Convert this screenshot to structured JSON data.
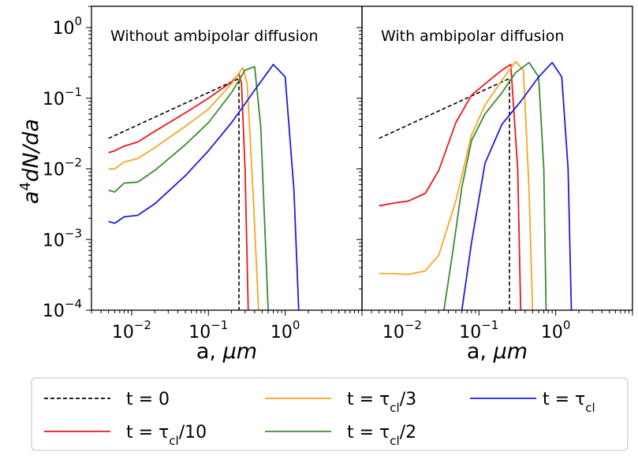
{
  "chart_data": [
    {
      "type": "line",
      "title": "Without ambipolar diffusion",
      "xlabel": "a, μm",
      "ylabel": "a⁴dN/da",
      "xscale": "log",
      "yscale": "log",
      "xlim": [
        0.003,
        10
      ],
      "ylim": [
        0.0001,
        2
      ],
      "xticks": [
        {
          "base": "10",
          "exp": "−2"
        },
        {
          "base": "10",
          "exp": "−1"
        },
        {
          "base": "10",
          "exp": "0"
        }
      ],
      "yticks": [
        {
          "base": "10",
          "exp": "0"
        },
        {
          "base": "10",
          "exp": "−1"
        },
        {
          "base": "10",
          "exp": "−2"
        },
        {
          "base": "10",
          "exp": "−3"
        },
        {
          "base": "10",
          "exp": "−4"
        }
      ],
      "series": [
        {
          "name": "t = 0",
          "color": "#000000",
          "dash": true,
          "x": [
            0.005,
            0.25,
            0.25
          ],
          "y": [
            0.027,
            0.19,
            0.0001
          ]
        },
        {
          "name": "t = τcl/10",
          "color": "#e8191c",
          "x": [
            0.005,
            0.006,
            0.008,
            0.012,
            0.02,
            0.05,
            0.1,
            0.2,
            0.25,
            0.27,
            0.3,
            0.33
          ],
          "y": [
            0.017,
            0.018,
            0.021,
            0.024,
            0.034,
            0.062,
            0.1,
            0.17,
            0.22,
            0.16,
            0.01,
            0.0001
          ]
        },
        {
          "name": "t = τcl/3",
          "color": "#f5a623",
          "x": [
            0.005,
            0.006,
            0.008,
            0.012,
            0.02,
            0.05,
            0.1,
            0.2,
            0.28,
            0.32,
            0.38,
            0.45
          ],
          "y": [
            0.01,
            0.01,
            0.0125,
            0.014,
            0.02,
            0.04,
            0.07,
            0.16,
            0.27,
            0.16,
            0.005,
            0.0001
          ]
        },
        {
          "name": "t = τcl/2",
          "color": "#3a8a2f",
          "x": [
            0.005,
            0.006,
            0.008,
            0.012,
            0.02,
            0.05,
            0.1,
            0.2,
            0.3,
            0.4,
            0.48,
            0.6
          ],
          "y": [
            0.005,
            0.0047,
            0.0063,
            0.0065,
            0.0095,
            0.022,
            0.045,
            0.12,
            0.25,
            0.28,
            0.04,
            0.0001
          ]
        },
        {
          "name": "t = τcl",
          "color": "#1c1ce0",
          "x": [
            0.005,
            0.006,
            0.008,
            0.012,
            0.02,
            0.05,
            0.1,
            0.2,
            0.4,
            0.7,
            1.0,
            1.3,
            1.5
          ],
          "y": [
            0.0018,
            0.0017,
            0.0021,
            0.0022,
            0.0032,
            0.008,
            0.018,
            0.045,
            0.13,
            0.3,
            0.2,
            0.005,
            0.0001
          ]
        }
      ]
    },
    {
      "type": "line",
      "title": "With ambipolar diffusion",
      "xlabel": "a, μm",
      "xscale": "log",
      "yscale": "log",
      "xlim": [
        0.003,
        10
      ],
      "ylim": [
        0.0001,
        2
      ],
      "xticks": [
        {
          "base": "10",
          "exp": "−2"
        },
        {
          "base": "10",
          "exp": "−1"
        },
        {
          "base": "10",
          "exp": "0"
        }
      ],
      "series": [
        {
          "name": "t = 0",
          "color": "#000000",
          "dash": true,
          "x": [
            0.005,
            0.25,
            0.25
          ],
          "y": [
            0.027,
            0.19,
            0.0001
          ]
        },
        {
          "name": "t = τcl/10",
          "color": "#e8191c",
          "x": [
            0.005,
            0.008,
            0.012,
            0.02,
            0.03,
            0.05,
            0.08,
            0.12,
            0.2,
            0.26,
            0.32,
            0.35
          ],
          "y": [
            0.003,
            0.0033,
            0.0035,
            0.0045,
            0.0095,
            0.045,
            0.11,
            0.16,
            0.25,
            0.3,
            0.01,
            0.0001
          ]
        },
        {
          "name": "t = τcl/3",
          "color": "#f5a623",
          "x": [
            0.005,
            0.008,
            0.012,
            0.02,
            0.03,
            0.05,
            0.08,
            0.12,
            0.2,
            0.3,
            0.38,
            0.45,
            0.5
          ],
          "y": [
            0.00033,
            0.00033,
            0.00032,
            0.00036,
            0.0006,
            0.0035,
            0.03,
            0.08,
            0.18,
            0.33,
            0.25,
            0.005,
            0.0001
          ]
        },
        {
          "name": "t = τcl/2",
          "color": "#3a8a2f",
          "x": [
            0.035,
            0.045,
            0.06,
            0.08,
            0.12,
            0.2,
            0.3,
            0.45,
            0.6,
            0.7,
            0.75
          ],
          "y": [
            0.0001,
            0.0006,
            0.0055,
            0.025,
            0.06,
            0.12,
            0.23,
            0.32,
            0.2,
            0.01,
            0.0001
          ]
        },
        {
          "name": "t = τcl",
          "color": "#1c1ce0",
          "x": [
            0.06,
            0.08,
            0.12,
            0.2,
            0.35,
            0.6,
            0.9,
            1.2,
            1.45,
            1.6
          ],
          "y": [
            0.0001,
            0.0009,
            0.012,
            0.043,
            0.09,
            0.2,
            0.32,
            0.2,
            0.01,
            0.0001
          ]
        }
      ]
    }
  ],
  "legend": {
    "entries": [
      {
        "label": "t = 0",
        "color": "#000000",
        "dash": true
      },
      {
        "label": "t = τcl/3",
        "color": "#f5a623",
        "dash": false
      },
      {
        "label": "t = τcl",
        "color": "#1c1ce0",
        "dash": false
      },
      {
        "label": "t = τcl/10",
        "color": "#e8191c",
        "dash": false
      },
      {
        "label": "t = τcl/2",
        "color": "#3a8a2f",
        "dash": false
      }
    ]
  }
}
